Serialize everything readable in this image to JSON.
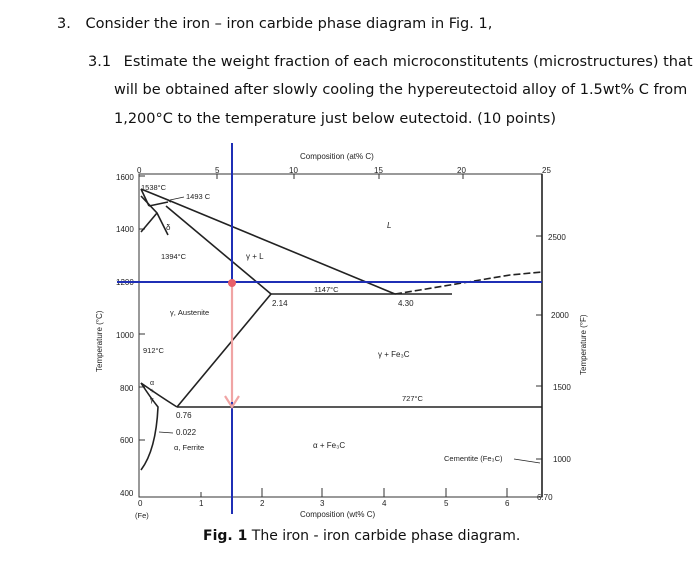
{
  "question": {
    "number": "3.",
    "intro": "Consider the iron – iron carbide phase diagram in Fig. 1,",
    "sub_number": "3.1",
    "line1": "Estimate the weight fraction of each microconstitutents (microstructures) that",
    "line2": "will be obtained after slowly cooling the hypereutectoid alloy of 1.5wt% C from",
    "line3": "1,200°C to the temperature just below eutectoid. (10 points)"
  },
  "figure": {
    "top_axis_label": "Composition (at% C)",
    "top_ticks": [
      "0",
      "5",
      "10",
      "15",
      "20",
      "25"
    ],
    "bottom_axis_label": "Composition (wt% C)",
    "bottom_ticks": [
      "0",
      "1",
      "2",
      "3",
      "4",
      "5",
      "6",
      "6.70"
    ],
    "bottom_fe_label": "(Fe)",
    "left_axis_label": "Temperature (°C)",
    "left_ticks": [
      "1600",
      "1400",
      "1200",
      "1000",
      "800",
      "600",
      "400"
    ],
    "right_axis_label": "Temperature (°F)",
    "right_ticks": [
      "2500",
      "2000",
      "1500",
      "1000"
    ],
    "labels": {
      "t1538": "1538°C",
      "t1493": "1493 C",
      "delta": "δ",
      "t1394": "1394°C",
      "gamma_l": "γ + L",
      "liquid": "L",
      "t1147": "1147°C",
      "c214": "2.14",
      "c430": "4.30",
      "austenite": "γ, Austenite",
      "t912": "912°C",
      "gamma_fe3c": "γ + Fe₃C",
      "t727": "727°C",
      "alpha_gamma_a": "α",
      "alpha_gamma_plus": "+",
      "alpha_gamma_g": "γ",
      "c076": "0.76",
      "c0022": "0.022",
      "ferrite": "α, Ferrite",
      "alpha_fe3c": "α + Fe₃C",
      "cementite": "Cementite (Fe₃C)"
    },
    "caption_bold": "Fig. 1",
    "caption_rest": " The iron -  iron carbide phase diagram.",
    "colors": {
      "blue_line": "#1f2fb5",
      "arrow": "#f0a4a4",
      "marker": "#e8606a"
    }
  }
}
